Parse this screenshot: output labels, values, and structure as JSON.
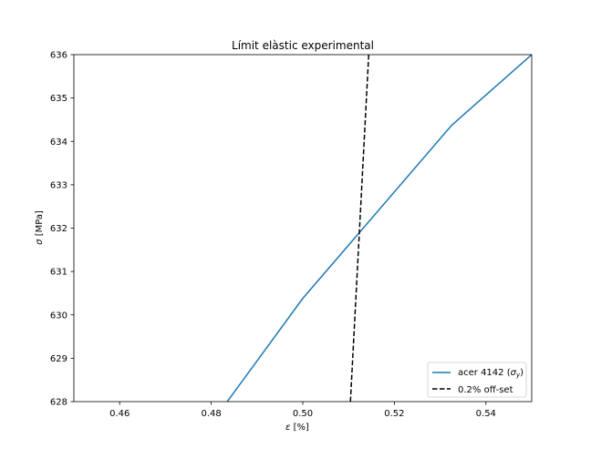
{
  "chart_data": {
    "type": "line",
    "title": "Límit elàstic experimental",
    "xlabel_symbol": "ε",
    "xlabel_unit": "[%]",
    "ylabel_symbol": "σ",
    "ylabel_unit": "[MPa]",
    "xlim": [
      0.45,
      0.55
    ],
    "ylim": [
      628,
      636
    ],
    "xticks": [
      0.46,
      0.48,
      0.5,
      0.52,
      0.54
    ],
    "xtick_labels": [
      "0.46",
      "0.48",
      "0.50",
      "0.52",
      "0.54"
    ],
    "yticks": [
      628,
      629,
      630,
      631,
      632,
      633,
      634,
      635,
      636
    ],
    "ytick_labels": [
      "628",
      "629",
      "630",
      "631",
      "632",
      "633",
      "634",
      "635",
      "636"
    ],
    "grid": false,
    "legend_position": "lower-right",
    "series": [
      {
        "name_main": "acer 4142 (",
        "name_symbol": "σ",
        "name_subscript": "y",
        "name_close": ")",
        "color": "#1f77b4",
        "style": "solid",
        "x": [
          0.4835,
          0.5,
          0.5325,
          0.55
        ],
        "y": [
          628,
          630.38,
          634.37,
          636
        ]
      },
      {
        "name": "0.2% off-set",
        "color": "#000000",
        "style": "dashed",
        "x": [
          0.5104,
          0.5144
        ],
        "y": [
          628,
          636
        ]
      }
    ]
  }
}
